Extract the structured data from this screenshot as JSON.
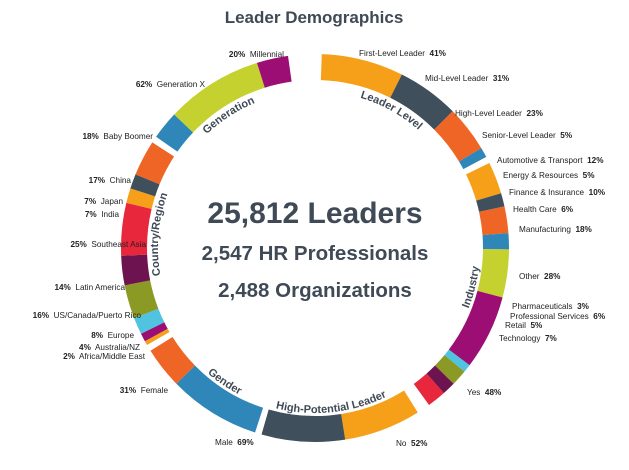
{
  "chart_data": {
    "type": "pie",
    "title": "Leader Demographics",
    "center_lines": [
      "25,812 Leaders",
      "2,547 HR Professionals",
      "2,488 Organizations"
    ],
    "groups": [
      {
        "name": "Leader Level",
        "segments": [
          {
            "label": "First-Level Leader",
            "value": 41,
            "pct": "41%",
            "color": "#f6a01a"
          },
          {
            "label": "Mid-Level Leader",
            "value": 31,
            "pct": "31%",
            "color": "#3f4f5c"
          },
          {
            "label": "High-Level Leader",
            "value": 23,
            "pct": "23%",
            "color": "#ee6526"
          },
          {
            "label": "Senior-Level Leader",
            "value": 5,
            "pct": "5%",
            "color": "#2f86b8"
          }
        ]
      },
      {
        "name": "Industry",
        "segments": [
          {
            "label": "Automotive & Transport",
            "value": 12,
            "pct": "12%",
            "color": "#f6a01a"
          },
          {
            "label": "Energy & Resources",
            "value": 5,
            "pct": "5%",
            "color": "#3f4f5c"
          },
          {
            "label": "Finance & Insurance",
            "value": 10,
            "pct": "10%",
            "color": "#ee6526"
          },
          {
            "label": "Health Care",
            "value": 6,
            "pct": "6%",
            "color": "#2f86b8"
          },
          {
            "label": "Manufacturing",
            "value": 18,
            "pct": "18%",
            "color": "#c4d12e"
          },
          {
            "label": "Other",
            "value": 28,
            "pct": "28%",
            "color": "#9c0e73"
          },
          {
            "label": "Pharmaceuticals",
            "value": 3,
            "pct": "3%",
            "color": "#4fc3e0"
          },
          {
            "label": "Professional Services",
            "value": 6,
            "pct": "6%",
            "color": "#8a9a24"
          },
          {
            "label": "Retail",
            "value": 5,
            "pct": "5%",
            "color": "#6d1350"
          },
          {
            "label": "Technology",
            "value": 7,
            "pct": "7%",
            "color": "#e8263c"
          }
        ]
      },
      {
        "name": "High-Potential Leader",
        "segments": [
          {
            "label": "Yes",
            "value": 48,
            "pct": "48%",
            "color": "#f6a01a"
          },
          {
            "label": "No",
            "value": 52,
            "pct": "52%",
            "color": "#3f4f5c"
          }
        ]
      },
      {
        "name": "Gender",
        "segments": [
          {
            "label": "Male",
            "value": 69,
            "pct": "69%",
            "color": "#2f86b8"
          },
          {
            "label": "Female",
            "value": 31,
            "pct": "31%",
            "color": "#ee6526"
          }
        ]
      },
      {
        "name": "Country/Region",
        "segments": [
          {
            "label": "Africa/Middle East",
            "value": 2,
            "pct": "2%",
            "color": "#f6a01a"
          },
          {
            "label": "Australia/NZ",
            "value": 4,
            "pct": "4%",
            "color": "#9c0e73"
          },
          {
            "label": "Europe",
            "value": 8,
            "pct": "8%",
            "color": "#4fc3e0"
          },
          {
            "label": "US/Canada/Puerto Rico",
            "value": 16,
            "pct": "16%",
            "color": "#8a9a24"
          },
          {
            "label": "Latin America",
            "value": 14,
            "pct": "14%",
            "color": "#6d1350"
          },
          {
            "label": "Southeast Asia",
            "value": 25,
            "pct": "25%",
            "color": "#e8263c"
          },
          {
            "label": "India",
            "value": 7,
            "pct": "7%",
            "color": "#f6a01a"
          },
          {
            "label": "Japan",
            "value": 7,
            "pct": "7%",
            "color": "#3f4f5c"
          },
          {
            "label": "China",
            "value": 17,
            "pct": "17%",
            "color": "#ee6526"
          }
        ]
      },
      {
        "name": "Generation",
        "segments": [
          {
            "label": "Baby Boomer",
            "value": 18,
            "pct": "18%",
            "color": "#2f86b8"
          },
          {
            "label": "Generation X",
            "value": 62,
            "pct": "62%",
            "color": "#c4d12e"
          },
          {
            "label": "Millennial",
            "value": 20,
            "pct": "20%",
            "color": "#9c0e73"
          }
        ]
      }
    ]
  }
}
